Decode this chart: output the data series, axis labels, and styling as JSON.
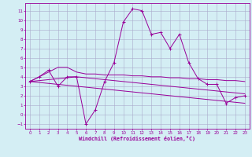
{
  "xlabel": "Windchill (Refroidissement éolien,°C)",
  "x": [
    0,
    1,
    2,
    3,
    4,
    5,
    6,
    7,
    8,
    9,
    10,
    11,
    12,
    13,
    14,
    15,
    16,
    17,
    18,
    19,
    20,
    21,
    22,
    23
  ],
  "line1": [
    3.5,
    4.0,
    4.7,
    3.0,
    4.0,
    4.0,
    -1.0,
    0.5,
    3.5,
    5.5,
    9.8,
    11.2,
    11.0,
    8.5,
    8.7,
    7.0,
    8.5,
    5.5,
    3.8,
    3.2,
    3.2,
    1.2,
    1.8,
    2.0
  ],
  "line2": [
    3.5,
    4.0,
    4.5,
    5.0,
    5.0,
    4.5,
    4.3,
    4.3,
    4.2,
    4.2,
    4.2,
    4.1,
    4.1,
    4.0,
    4.0,
    3.9,
    3.9,
    3.8,
    3.8,
    3.7,
    3.7,
    3.6,
    3.6,
    3.5
  ],
  "line3": [
    3.5,
    3.4,
    3.3,
    3.2,
    3.1,
    3.0,
    2.9,
    2.8,
    2.7,
    2.6,
    2.5,
    2.4,
    2.3,
    2.2,
    2.1,
    2.0,
    1.9,
    1.8,
    1.7,
    1.6,
    1.5,
    1.4,
    1.3,
    1.2
  ],
  "line4": [
    3.5,
    3.6,
    3.7,
    3.8,
    3.9,
    4.0,
    3.9,
    3.8,
    3.7,
    3.6,
    3.5,
    3.4,
    3.3,
    3.2,
    3.1,
    3.0,
    2.9,
    2.8,
    2.7,
    2.6,
    2.5,
    2.4,
    2.3,
    2.2
  ],
  "line_color": "#990099",
  "background_color": "#d4eef4",
  "grid_color": "#aaaacc",
  "ylim": [
    -1.5,
    11.8
  ],
  "xlim": [
    -0.5,
    23.5
  ]
}
